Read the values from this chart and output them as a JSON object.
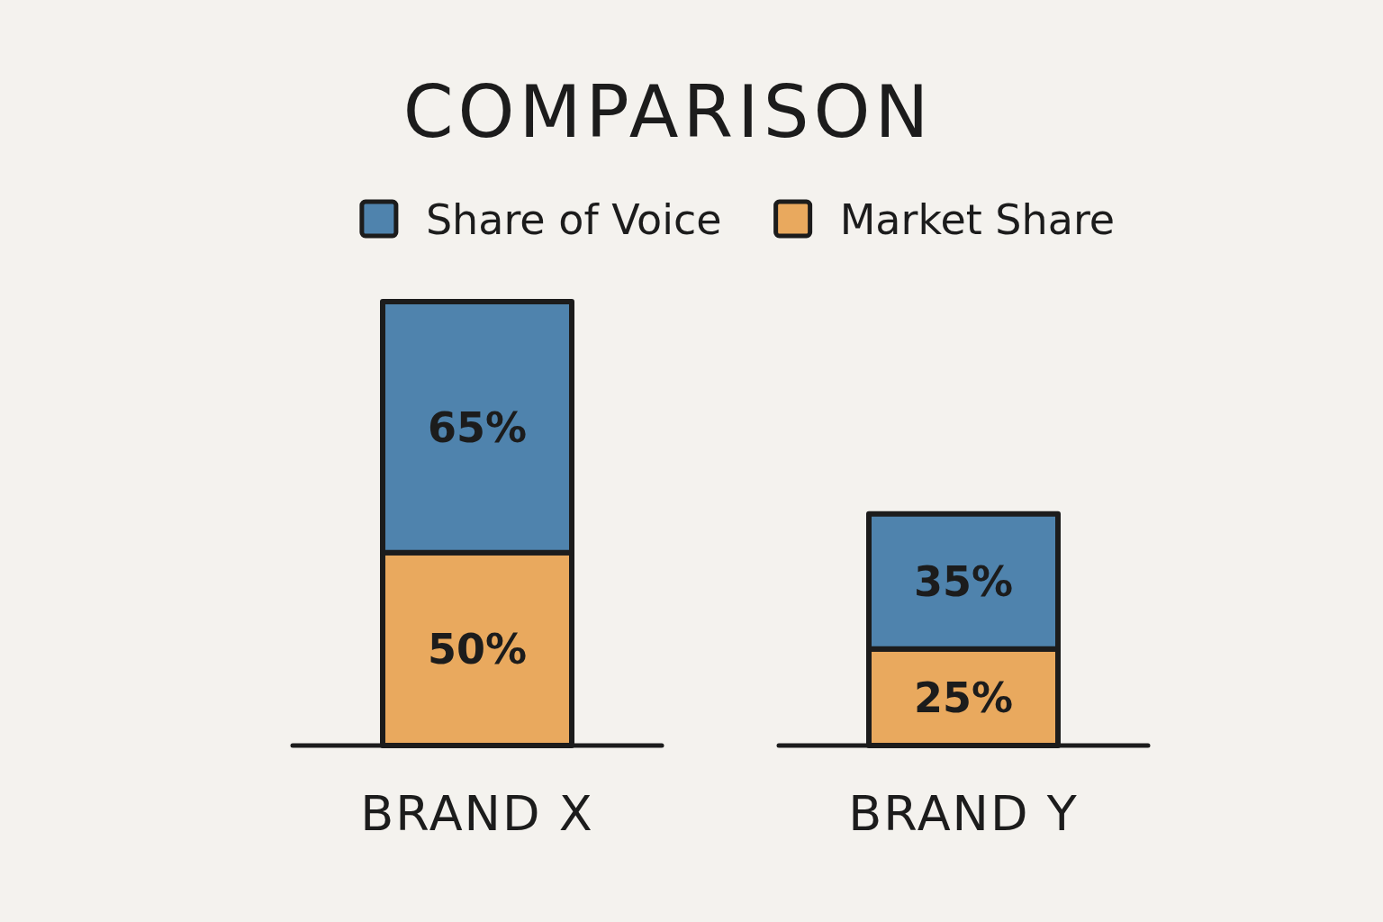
{
  "chart_data": {
    "type": "bar",
    "title": "COMPARISON",
    "categories": [
      "BRAND X",
      "BRAND Y"
    ],
    "stacked": true,
    "legend": "top",
    "series": [
      {
        "name": "Market Share",
        "color": "#e9a95e",
        "values": [
          50,
          25
        ],
        "value_labels": [
          "50%",
          "25%"
        ]
      },
      {
        "name": "Share of Voice",
        "color": "#4f83ad",
        "values": [
          65,
          35
        ],
        "value_labels": [
          "65%",
          "35%"
        ]
      }
    ]
  }
}
